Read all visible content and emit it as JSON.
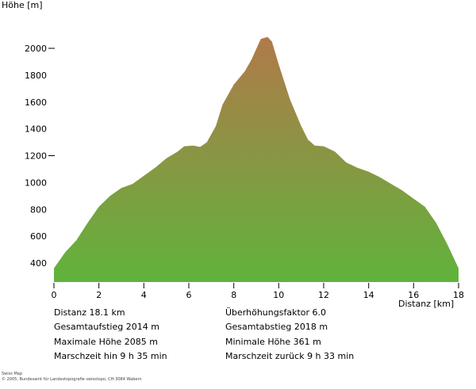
{
  "chart_data": {
    "type": "area",
    "ylabel": "Höhe [m]",
    "xlabel": "Distanz [km]",
    "xlim": [
      0,
      18
    ],
    "ylim": [
      300,
      2100
    ],
    "xticks": [
      0,
      2,
      4,
      6,
      8,
      10,
      12,
      14,
      16,
      18
    ],
    "yticks": [
      400,
      600,
      800,
      1000,
      1200,
      1400,
      1600,
      1800,
      2000
    ],
    "ytick_marks_with_dash": [
      1200,
      2000
    ],
    "fill_gradient": {
      "top": "#b07a4a",
      "bottom": "#60b33c"
    },
    "x": [
      0,
      0.5,
      1,
      1.5,
      2,
      2.5,
      3,
      3.5,
      4,
      4.5,
      5,
      5.5,
      5.8,
      6.2,
      6.5,
      6.8,
      7.2,
      7.5,
      8,
      8.5,
      8.8,
      9.2,
      9.5,
      9.7,
      10,
      10.5,
      11,
      11.3,
      11.6,
      12,
      12.5,
      13,
      13.5,
      14,
      14.5,
      15,
      15.5,
      16,
      16.5,
      17,
      17.5,
      18
    ],
    "y": [
      361,
      480,
      570,
      700,
      820,
      900,
      960,
      990,
      1050,
      1110,
      1180,
      1230,
      1270,
      1275,
      1265,
      1300,
      1420,
      1580,
      1730,
      1830,
      1920,
      2070,
      2085,
      2050,
      1880,
      1620,
      1420,
      1320,
      1275,
      1270,
      1230,
      1150,
      1110,
      1080,
      1040,
      990,
      940,
      880,
      820,
      700,
      540,
      361
    ]
  },
  "stats": {
    "left": [
      "Distanz 18.1 km",
      "Gesamtaufstieg  2014 m",
      "Maximale Höhe  2085 m",
      "Marschzeit hin  9 h 35 min"
    ],
    "right": [
      "Überhöhungsfaktor 6.0",
      "Gesamtabstieg  2018 m",
      "Minimale Höhe  361 m",
      "Marschzeit zurück  9 h 33 min"
    ]
  },
  "credits": [
    "Swiss Map",
    "© 2005, Bundesamt für Landestopografie swisstopo, CH-3084 Wabern"
  ]
}
